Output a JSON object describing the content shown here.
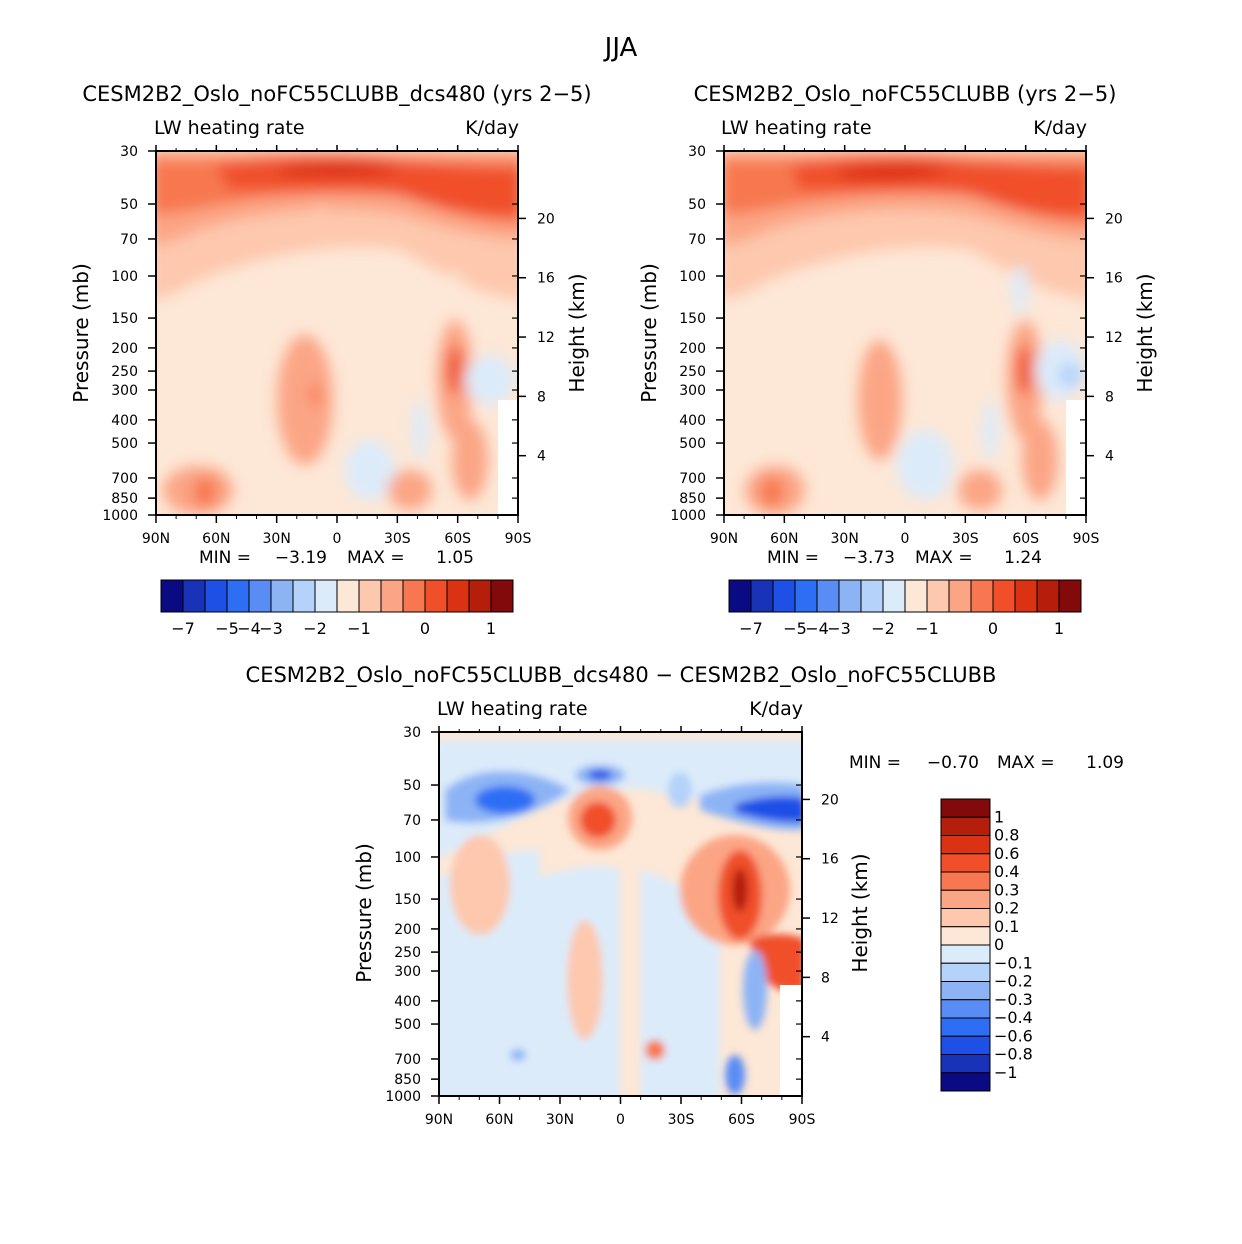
{
  "figure_title": "JJA",
  "chart_data": [
    {
      "type": "heatmap",
      "title": "CESM2B2_Oslo_noFC55CLUBB_dcs480 (yrs 2−5)",
      "subtitle_left": "LW heating rate",
      "subtitle_right": "K/day",
      "xlabel": "",
      "ylabel": "Pressure (mb)",
      "ylabel_right": "Height (km)",
      "x_ticks": [
        "90N",
        "60N",
        "30N",
        "0",
        "30S",
        "60S",
        "90S"
      ],
      "x_range": [
        90,
        -90
      ],
      "y_ticks": [
        30,
        50,
        70,
        100,
        150,
        200,
        250,
        300,
        400,
        500,
        700,
        850,
        1000
      ],
      "y_range": [
        30,
        1000
      ],
      "y_right_ticks": [
        20,
        16,
        12,
        8,
        4
      ],
      "stats": {
        "min_label": "MIN =",
        "min": "−3.19",
        "max_label": "MAX =",
        "max": "1.05"
      },
      "colorbar_labels": [
        "−7",
        "−5",
        "−4",
        "−3",
        "−2",
        "−1",
        "0",
        "1"
      ],
      "colorbar_colors": [
        "#0a0a82",
        "#1832b8",
        "#1e50e6",
        "#2d6ef5",
        "#5a8cf5",
        "#8cb4f5",
        "#b4d2fa",
        "#dcebfa",
        "#fde7d6",
        "#fdc8ad",
        "#fba585",
        "#f77850",
        "#f04f2a",
        "#dc3214",
        "#b41e0a",
        "#820a0a"
      ]
    },
    {
      "type": "heatmap",
      "title": "CESM2B2_Oslo_noFC55CLUBB (yrs 2−5)",
      "subtitle_left": "LW heating rate",
      "subtitle_right": "K/day",
      "xlabel": "",
      "ylabel": "Pressure (mb)",
      "ylabel_right": "Height (km)",
      "x_ticks": [
        "90N",
        "60N",
        "30N",
        "0",
        "30S",
        "60S",
        "90S"
      ],
      "x_range": [
        90,
        -90
      ],
      "y_ticks": [
        30,
        50,
        70,
        100,
        150,
        200,
        250,
        300,
        400,
        500,
        700,
        850,
        1000
      ],
      "y_range": [
        30,
        1000
      ],
      "y_right_ticks": [
        20,
        16,
        12,
        8,
        4
      ],
      "stats": {
        "min_label": "MIN =",
        "min": "−3.73",
        "max_label": "MAX =",
        "max": "1.24"
      },
      "colorbar_labels": [
        "−7",
        "−5",
        "−4",
        "−3",
        "−2",
        "−1",
        "0",
        "1"
      ],
      "colorbar_colors": [
        "#0a0a82",
        "#1832b8",
        "#1e50e6",
        "#2d6ef5",
        "#5a8cf5",
        "#8cb4f5",
        "#b4d2fa",
        "#dcebfa",
        "#fde7d6",
        "#fdc8ad",
        "#fba585",
        "#f77850",
        "#f04f2a",
        "#dc3214",
        "#b41e0a",
        "#820a0a"
      ]
    },
    {
      "type": "heatmap",
      "title": "CESM2B2_Oslo_noFC55CLUBB_dcs480 − CESM2B2_Oslo_noFC55CLUBB",
      "subtitle_left": "LW heating rate",
      "subtitle_right": "K/day",
      "xlabel": "",
      "ylabel": "Pressure (mb)",
      "ylabel_right": "Height (km)",
      "x_ticks": [
        "90N",
        "60N",
        "30N",
        "0",
        "30S",
        "60S",
        "90S"
      ],
      "x_range": [
        90,
        -90
      ],
      "y_ticks": [
        30,
        50,
        70,
        100,
        150,
        200,
        250,
        300,
        400,
        500,
        700,
        850,
        1000
      ],
      "y_range": [
        30,
        1000
      ],
      "y_right_ticks": [
        20,
        16,
        12,
        8,
        4
      ],
      "stats": {
        "min_label": "MIN =",
        "min": "−0.70",
        "max_label": "MAX =",
        "max": "1.09"
      },
      "colorbar_labels": [
        "1",
        "0.8",
        "0.6",
        "0.4",
        "0.3",
        "0.2",
        "0.1",
        "0",
        "−0.1",
        "−0.2",
        "−0.3",
        "−0.4",
        "−0.6",
        "−0.8",
        "−1"
      ],
      "colorbar_colors": [
        "#820a0a",
        "#b41e0a",
        "#dc3214",
        "#f04f2a",
        "#f77850",
        "#fba585",
        "#fdc8ad",
        "#fde7d6",
        "#dcebfa",
        "#b4d2fa",
        "#8cb4f5",
        "#5a8cf5",
        "#2d6ef5",
        "#1e50e6",
        "#1832b8",
        "#0a0a82"
      ]
    }
  ]
}
